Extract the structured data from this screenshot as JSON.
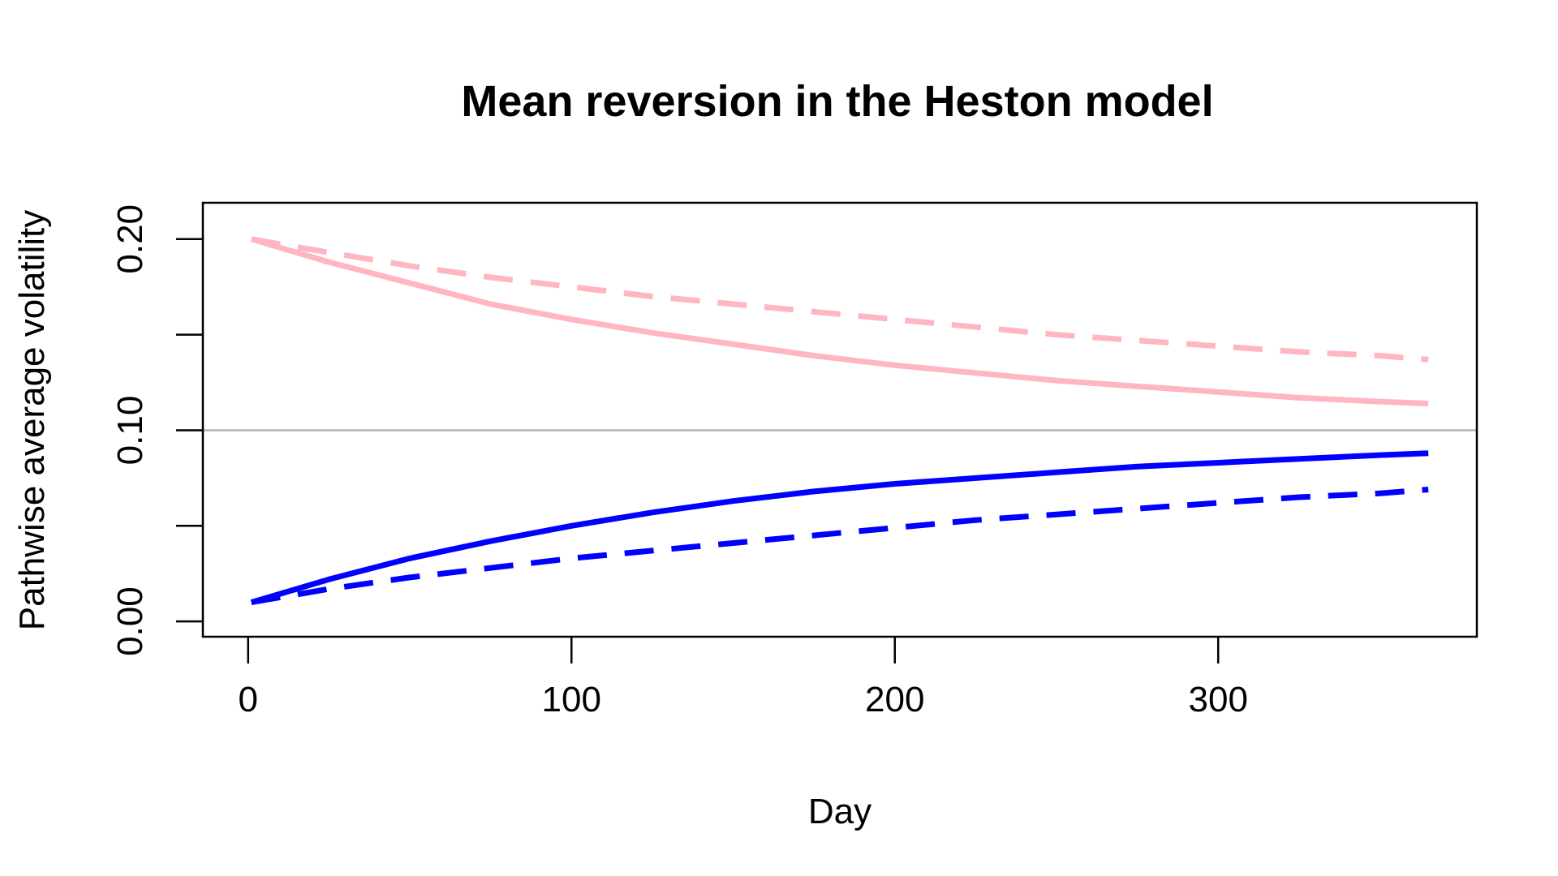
{
  "chart_data": {
    "type": "line",
    "title": "Mean reversion in the Heston model",
    "xlabel": "Day",
    "ylabel": "Pathwise average volatility",
    "xlim": [
      -14,
      380
    ],
    "ylim": [
      -0.008,
      0.219
    ],
    "x_ticks": [
      0,
      100,
      200,
      300
    ],
    "x_tick_labels": [
      "0",
      "100",
      "200",
      "300"
    ],
    "y_ticks": [
      0.0,
      0.05,
      0.1,
      0.15,
      0.2
    ],
    "y_tick_labels": [
      "0.00",
      "",
      "0.10",
      "",
      "0.20"
    ],
    "reference_line": {
      "y": 0.1,
      "color": "#b3b3b3"
    },
    "grid": false,
    "legend": "none",
    "series": [
      {
        "color": "#ffb6c1",
        "dash": "solid",
        "x": [
          1,
          25,
          50,
          75,
          100,
          125,
          150,
          175,
          200,
          225,
          250,
          275,
          300,
          325,
          350,
          365
        ],
        "y": [
          0.2,
          0.188,
          0.177,
          0.166,
          0.158,
          0.151,
          0.145,
          0.139,
          0.134,
          0.13,
          0.126,
          0.123,
          0.12,
          0.117,
          0.115,
          0.114
        ]
      },
      {
        "color": "#ffb6c1",
        "dash": "dashed",
        "x": [
          1,
          25,
          50,
          75,
          100,
          125,
          150,
          175,
          200,
          225,
          250,
          275,
          300,
          325,
          350,
          365
        ],
        "y": [
          0.2,
          0.193,
          0.186,
          0.18,
          0.175,
          0.17,
          0.166,
          0.162,
          0.158,
          0.154,
          0.15,
          0.147,
          0.144,
          0.141,
          0.139,
          0.137
        ]
      },
      {
        "color": "#0000ff",
        "dash": "solid",
        "x": [
          1,
          25,
          50,
          75,
          100,
          125,
          150,
          175,
          200,
          225,
          250,
          275,
          300,
          325,
          350,
          365
        ],
        "y": [
          0.01,
          0.022,
          0.033,
          0.042,
          0.05,
          0.057,
          0.063,
          0.068,
          0.072,
          0.075,
          0.078,
          0.081,
          0.083,
          0.085,
          0.087,
          0.088
        ]
      },
      {
        "color": "#0000ff",
        "dash": "dashed",
        "x": [
          1,
          25,
          50,
          75,
          100,
          125,
          150,
          175,
          200,
          225,
          250,
          275,
          300,
          325,
          350,
          365
        ],
        "y": [
          0.01,
          0.017,
          0.023,
          0.028,
          0.033,
          0.037,
          0.041,
          0.045,
          0.049,
          0.053,
          0.056,
          0.059,
          0.062,
          0.065,
          0.067,
          0.069
        ]
      }
    ]
  }
}
